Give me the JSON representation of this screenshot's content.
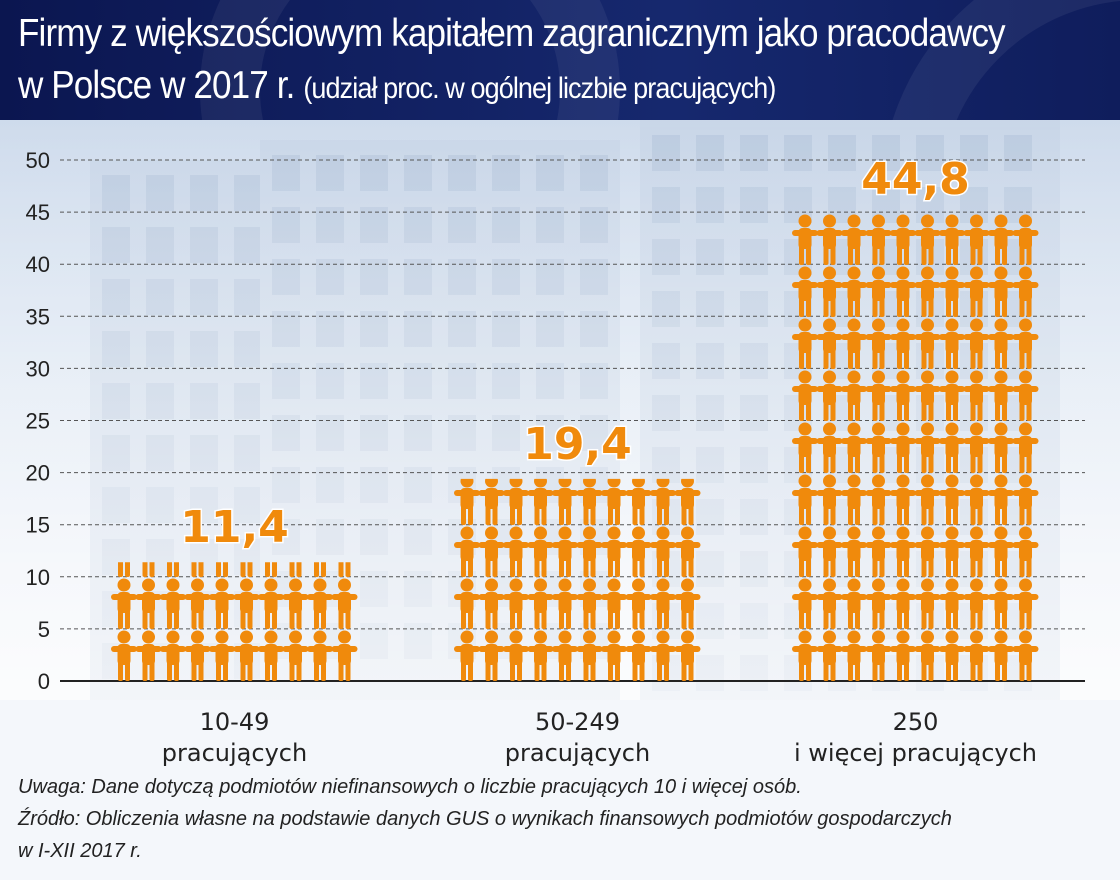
{
  "title_line1": "Firmy z większościowym kapitałem zagranicznym jako pracodawcy",
  "title_line2_main": "w Polsce w 2017 r.",
  "title_line2_sub": "(udział proc. w ogólnej liczbie pracujących)",
  "chart_data": {
    "type": "bar",
    "style": "pictogram",
    "categories": [
      [
        "10-49",
        "pracujących"
      ],
      [
        "50-249",
        "pracujących"
      ],
      [
        "250",
        "i więcej pracujących"
      ]
    ],
    "values": [
      11.4,
      19.4,
      44.8
    ],
    "value_labels": [
      "11,4",
      "19,4",
      "44,8"
    ],
    "ylim": [
      0,
      50
    ],
    "yticks": [
      0,
      5,
      10,
      15,
      20,
      25,
      30,
      35,
      40,
      45,
      50
    ],
    "grid": true,
    "bar_color": "#f08a0c",
    "icon": "person-icon"
  },
  "footnotes": {
    "note": "Uwaga: Dane dotyczą podmiotów niefinansowych o liczbie pracujących 10 i więcej osób.",
    "source_line1": "Źródło: Obliczenia własne na podstawie danych GUS o wynikach finansowych podmiotów gospodarczych",
    "source_line2": "w I-XII 2017 r."
  }
}
